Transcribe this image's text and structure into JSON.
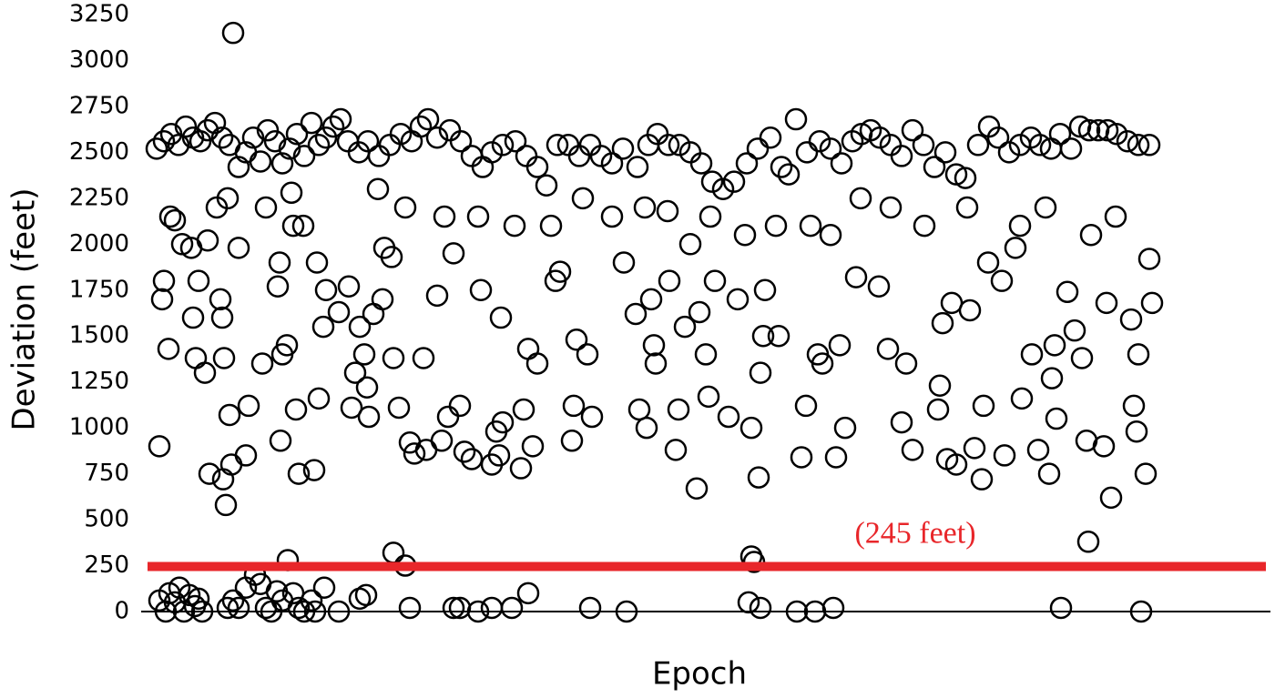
{
  "chart_data": {
    "type": "scatter",
    "xlabel": "Epoch",
    "ylabel": "Deviation (feet)",
    "xlim": [
      155,
      1395
    ],
    "ylim": [
      0,
      3250
    ],
    "yticks": [
      0,
      250,
      500,
      750,
      1000,
      1250,
      1500,
      1750,
      2000,
      2250,
      2500,
      2750,
      3000,
      3250
    ],
    "grid": false,
    "color": "#000000",
    "threshold": {
      "value": 245,
      "label": "(245 feet)",
      "color": "#e8262a"
    },
    "x": [
      175,
      182,
      186,
      192,
      197,
      202,
      208,
      214,
      218,
      222,
      250,
      256,
      262,
      270,
      280,
      286,
      292,
      298,
      304,
      310,
      316,
      322,
      328,
      334,
      342,
      346,
      356,
      372,
      395,
      402,
      432,
      445,
      450,
      498,
      505,
      525,
      540,
      562,
      580,
      648,
      688,
      822,
      825,
      828,
      835,
      875,
      895,
      915,
      1165,
      1253,
      172,
      180,
      188,
      196,
      204,
      212,
      220,
      228,
      236,
      244,
      252,
      262,
      270,
      278,
      286,
      294,
      302,
      310,
      318,
      326,
      334,
      342,
      350,
      358,
      366,
      374,
      382,
      394,
      404,
      416,
      428,
      440,
      452,
      462,
      470,
      480,
      494,
      506,
      518,
      530,
      540,
      552,
      566,
      578,
      590,
      600,
      612,
      624,
      636,
      648,
      660,
      672,
      684,
      700,
      712,
      722,
      734,
      746,
      758,
      770,
      782,
      794,
      806,
      820,
      832,
      846,
      858,
      866,
      874,
      886,
      900,
      912,
      924,
      936,
      946,
      956,
      966,
      978,
      990,
      1002,
      1014,
      1026,
      1038,
      1050,
      1060,
      1074,
      1086,
      1096,
      1108,
      1120,
      1132,
      1142,
      1154,
      1164,
      1176,
      1186,
      1196,
      1206,
      1216,
      1226,
      1238,
      1250,
      1262,
      175,
      178,
      180,
      185,
      187,
      192,
      200,
      210,
      212,
      215,
      218,
      225,
      228,
      230,
      238,
      242,
      244,
      246,
      245,
      248,
      252,
      254,
      256,
      262,
      270,
      273,
      288,
      292,
      305,
      307,
      308,
      310,
      315,
      322,
      325,
      328,
      333,
      345,
      348,
      350,
      355,
      358,
      372,
      383,
      386,
      390,
      395,
      400,
      403,
      405,
      410,
      420,
      422,
      430,
      432,
      438,
      450,
      455,
      465,
      468,
      480,
      485,
      492,
      498,
      505,
      510,
      518,
      528,
      540,
      545,
      548,
      550,
      552,
      572,
      575,
      580,
      585,
      590,
      610,
      615,
      628,
      630,
      633,
      645,
      650,
      685,
      698,
      702,
      710,
      715,
      718,
      720,
      735,
      742,
      745,
      752,
      765,
      768,
      775,
      778,
      785,
      800,
      810,
      825,
      833,
      835,
      838,
      840,
      855,
      880,
      885,
      898,
      903,
      918,
      922,
      928,
      940,
      965,
      975,
      990,
      995,
      1002,
      1030,
      1032,
      1035,
      1040,
      1045,
      1050,
      1065,
      1070,
      1078,
      1080,
      1085,
      1100,
      1103,
      1115,
      1122,
      1133,
      1140,
      1152,
      1155,
      1158,
      1160,
      1172,
      1180,
      1188,
      1193,
      1195,
      1212,
      1215,
      1220,
      1242,
      1245,
      1248,
      1250,
      1258,
      1262,
      1265,
      250,
      320,
      415,
      445,
      488,
      525,
      565,
      605,
      640,
      672,
      708,
      733,
      758,
      780,
      818,
      852,
      890,
      912,
      945,
      978,
      1015,
      1062,
      1120,
      1148,
      1198,
      1225
    ],
    "values": [
      60,
      0,
      100,
      50,
      130,
      0,
      90,
      30,
      70,
      0,
      20,
      60,
      20,
      130,
      200,
      150,
      20,
      0,
      110,
      60,
      280,
      100,
      20,
      0,
      60,
      0,
      130,
      0,
      70,
      90,
      320,
      250,
      20,
      20,
      20,
      0,
      20,
      20,
      100,
      20,
      0,
      50,
      300,
      270,
      20,
      0,
      0,
      20,
      20,
      0,
      2520,
      2560,
      2600,
      2540,
      2640,
      2580,
      2560,
      2620,
      2660,
      2580,
      2540,
      2420,
      2500,
      2580,
      2450,
      2620,
      2560,
      2440,
      2520,
      2600,
      2480,
      2660,
      2540,
      2580,
      2640,
      2680,
      2560,
      2500,
      2560,
      2480,
      2540,
      2600,
      2560,
      2640,
      2680,
      2580,
      2620,
      2560,
      2480,
      2420,
      2500,
      2540,
      2560,
      2480,
      2420,
      2320,
      2540,
      2540,
      2480,
      2540,
      2480,
      2440,
      2520,
      2420,
      2540,
      2600,
      2540,
      2540,
      2500,
      2440,
      2340,
      2300,
      2340,
      2440,
      2520,
      2580,
      2420,
      2380,
      2680,
      2500,
      2560,
      2520,
      2440,
      2560,
      2600,
      2620,
      2580,
      2540,
      2480,
      2620,
      2540,
      2420,
      2500,
      2380,
      2360,
      2540,
      2640,
      2580,
      2500,
      2540,
      2580,
      2540,
      2520,
      2600,
      2520,
      2640,
      2620,
      2620,
      2620,
      2600,
      2560,
      2540,
      2540,
      900,
      1700,
      1800,
      1430,
      2150,
      2130,
      2000,
      1980,
      1600,
      1380,
      1800,
      1300,
      2020,
      750,
      2200,
      1700,
      1600,
      1380,
      720,
      580,
      1070,
      800,
      3150,
      1980,
      850,
      1120,
      1350,
      2200,
      1770,
      1900,
      930,
      1400,
      1450,
      2100,
      1100,
      750,
      2100,
      770,
      1900,
      1160,
      1550,
      1750,
      1630,
      1770,
      1110,
      1300,
      1550,
      1400,
      1220,
      1060,
      1620,
      1700,
      1980,
      1930,
      1380,
      1110,
      920,
      860,
      1380,
      880,
      1720,
      930,
      1060,
      1950,
      1120,
      870,
      830,
      1750,
      800,
      980,
      850,
      1600,
      1030,
      780,
      1100,
      1430,
      900,
      1350,
      1800,
      1850,
      930,
      1120,
      1480,
      1400,
      1060,
      1900,
      1620,
      1100,
      1000,
      1700,
      1450,
      1350,
      1800,
      880,
      1100,
      1550,
      670,
      1630,
      1400,
      1170,
      1800,
      1060,
      1700,
      1000,
      730,
      1300,
      1500,
      1750,
      1500,
      840,
      1120,
      1400,
      1350,
      840,
      1450,
      1000,
      1820,
      1770,
      1430,
      1030,
      1350,
      880,
      1100,
      1230,
      1570,
      830,
      1680,
      800,
      1640,
      890,
      720,
      1120,
      1900,
      1800,
      850,
      1980,
      1160,
      1400,
      880,
      750,
      1270,
      1450,
      1050,
      1740,
      1530,
      1380,
      930,
      380,
      900,
      1680,
      620,
      1590,
      1120,
      980,
      1400,
      750,
      1920,
      1680,
      2250,
      2280,
      2300,
      2200,
      2150,
      2150,
      2100,
      2100,
      2250,
      2150,
      2200,
      2180,
      2000,
      2150,
      2050,
      2100,
      2100,
      2050,
      2250,
      2200,
      2100,
      2200,
      2100,
      2200,
      2050,
      2150
    ]
  }
}
